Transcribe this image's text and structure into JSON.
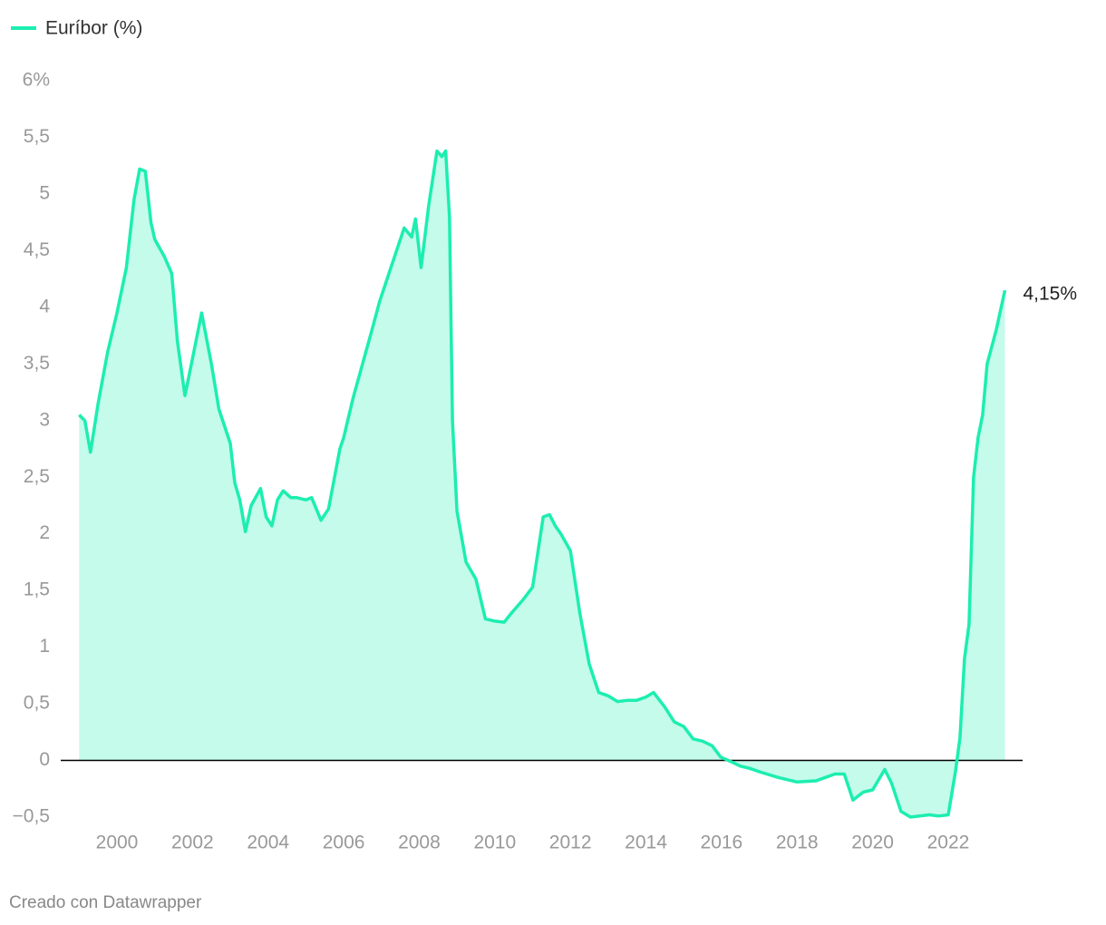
{
  "chart_data": {
    "type": "area",
    "x": [
      1999.0,
      1999.15,
      1999.3,
      1999.5,
      1999.75,
      2000.0,
      2000.25,
      2000.45,
      2000.6,
      2000.75,
      2000.9,
      2001.0,
      2001.25,
      2001.45,
      2001.6,
      2001.8,
      2002.0,
      2002.24,
      2002.5,
      2002.7,
      2003.0,
      2003.12,
      2003.25,
      2003.4,
      2003.55,
      2003.8,
      2003.95,
      2004.1,
      2004.25,
      2004.4,
      2004.6,
      2004.75,
      2005.0,
      2005.15,
      2005.4,
      2005.6,
      2005.9,
      2006.0,
      2006.25,
      2006.5,
      2006.75,
      2006.95,
      2007.25,
      2007.6,
      2007.8,
      2007.9,
      2008.05,
      2008.25,
      2008.47,
      2008.6,
      2008.7,
      2008.8,
      2008.88,
      2009.0,
      2009.24,
      2009.5,
      2009.75,
      2010.0,
      2010.25,
      2010.44,
      2010.75,
      2011.0,
      2011.28,
      2011.45,
      2011.6,
      2011.75,
      2012.0,
      2012.25,
      2012.5,
      2012.75,
      2013.0,
      2013.25,
      2013.5,
      2013.75,
      2014.0,
      2014.2,
      2014.5,
      2014.75,
      2015.0,
      2015.25,
      2015.5,
      2015.75,
      2015.98,
      2016.25,
      2016.5,
      2016.75,
      2017.0,
      2017.5,
      2018.0,
      2018.5,
      2018.75,
      2019.0,
      2019.25,
      2019.48,
      2019.75,
      2020.0,
      2020.32,
      2020.5,
      2020.75,
      2021.0,
      2021.25,
      2021.5,
      2021.75,
      2022.0,
      2022.19,
      2022.31,
      2022.43,
      2022.55,
      2022.67,
      2022.79,
      2022.91,
      2023.03,
      2023.27,
      2023.5
    ],
    "series": [
      {
        "name": "Euríbor (%)",
        "color": "#1ceeb0",
        "fill": "#c4fbea",
        "values": [
          3.05,
          3.0,
          2.72,
          3.15,
          3.6,
          3.95,
          4.35,
          4.95,
          5.22,
          5.2,
          4.75,
          4.6,
          4.45,
          4.3,
          3.7,
          3.22,
          3.55,
          3.95,
          3.5,
          3.1,
          2.8,
          2.45,
          2.3,
          2.02,
          2.25,
          2.4,
          2.15,
          2.07,
          2.3,
          2.38,
          2.32,
          2.32,
          2.3,
          2.32,
          2.12,
          2.22,
          2.75,
          2.85,
          3.2,
          3.5,
          3.8,
          4.05,
          4.35,
          4.7,
          4.62,
          4.78,
          4.35,
          4.9,
          5.38,
          5.33,
          5.38,
          4.8,
          3.0,
          2.2,
          1.75,
          1.6,
          1.25,
          1.23,
          1.22,
          1.3,
          1.42,
          1.53,
          2.15,
          2.17,
          2.07,
          2.0,
          1.85,
          1.3,
          0.85,
          0.6,
          0.57,
          0.52,
          0.53,
          0.53,
          0.56,
          0.6,
          0.47,
          0.34,
          0.3,
          0.19,
          0.17,
          0.13,
          0.03,
          -0.01,
          -0.05,
          -0.07,
          -0.1,
          -0.15,
          -0.19,
          -0.18,
          -0.15,
          -0.12,
          -0.12,
          -0.35,
          -0.28,
          -0.26,
          -0.08,
          -0.2,
          -0.45,
          -0.5,
          -0.49,
          -0.48,
          -0.49,
          -0.48,
          -0.1,
          0.2,
          0.9,
          1.2,
          2.5,
          2.85,
          3.05,
          3.5,
          3.8,
          4.15
        ]
      }
    ],
    "xlim": [
      1998.5,
      2024.0
    ],
    "xticks": [
      2000,
      2002,
      2004,
      2006,
      2008,
      2010,
      2012,
      2014,
      2016,
      2018,
      2020,
      2022
    ],
    "ylim": [
      -0.5,
      6
    ],
    "yticks": [
      {
        "value": -0.5,
        "label": "−0,5"
      },
      0,
      {
        "value": 0.5,
        "label": "0,5"
      },
      1,
      {
        "value": 1.5,
        "label": "1,5"
      },
      2,
      {
        "value": 2.5,
        "label": "2,5"
      },
      3,
      {
        "value": 3.5,
        "label": "3,5"
      },
      4,
      {
        "value": 4.5,
        "label": "4,5"
      },
      5,
      {
        "value": 5.5,
        "label": "5,5"
      },
      {
        "value": 6,
        "label": "6%"
      }
    ],
    "annotation": {
      "x": 2023.5,
      "y": 4.15,
      "label": "4,15%"
    },
    "source": "Creado con Datawrapper"
  }
}
